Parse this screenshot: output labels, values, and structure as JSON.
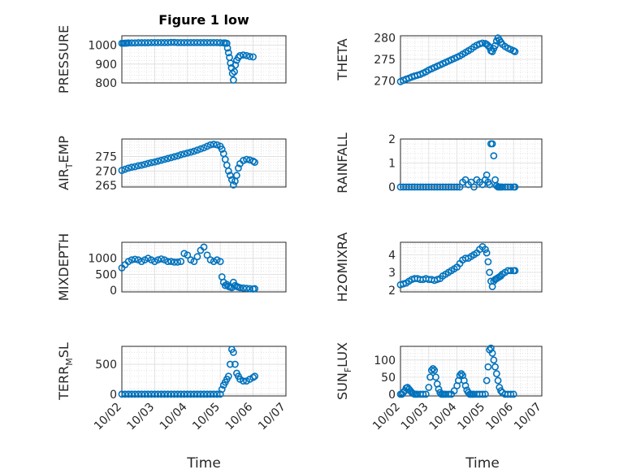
{
  "figure": {
    "title": "Figure 1 low",
    "xlabel": "Time",
    "marker_color": "#0072BD",
    "x_ticks": [
      "10/02",
      "10/03",
      "10/04",
      "10/05",
      "10/06",
      "10/07"
    ]
  },
  "chart_data": [
    {
      "type": "scatter",
      "ylabel": "PRESSURE",
      "title": "Figure 1 low",
      "xlim": [
        0,
        5
      ],
      "ylim": [
        800,
        1050
      ],
      "yticks": [
        800,
        900,
        1000
      ],
      "xtick_labels": [],
      "grid": "major+minor",
      "x": [
        0,
        0.05,
        0.1,
        0.15,
        0.2,
        0.3,
        0.4,
        0.5,
        0.6,
        0.7,
        0.8,
        0.9,
        1,
        1.1,
        1.2,
        1.3,
        1.4,
        1.5,
        1.6,
        1.7,
        1.8,
        1.9,
        2,
        2.1,
        2.2,
        2.3,
        2.4,
        2.5,
        2.6,
        2.7,
        2.8,
        2.9,
        3,
        3.1,
        3.15,
        3.2,
        3.22,
        3.25,
        3.28,
        3.31,
        3.34,
        3.37,
        3.4,
        3.43,
        3.46,
        3.5,
        3.55,
        3.6,
        3.7,
        3.8,
        3.9,
        4.0
      ],
      "y": [
        1010,
        1010,
        1011,
        1011,
        1012,
        1012,
        1012,
        1013,
        1013,
        1013,
        1013,
        1014,
        1014,
        1014,
        1014,
        1014,
        1014,
        1015,
        1015,
        1014,
        1014,
        1014,
        1014,
        1014,
        1014,
        1014,
        1014,
        1014,
        1014,
        1014,
        1014,
        1014,
        1013,
        1012,
        1012,
        1010,
        985,
        960,
        935,
        905,
        880,
        850,
        815,
        860,
        895,
        920,
        935,
        945,
        948,
        945,
        940,
        938
      ]
    },
    {
      "type": "scatter",
      "ylabel": "THETA",
      "xlim": [
        0,
        5
      ],
      "ylim": [
        269.5,
        280.5
      ],
      "yticks": [
        270,
        275,
        280
      ],
      "xtick_labels": [],
      "grid": "major+minor",
      "x": [
        0,
        0.1,
        0.2,
        0.3,
        0.4,
        0.5,
        0.6,
        0.7,
        0.8,
        0.9,
        1,
        1.1,
        1.2,
        1.3,
        1.4,
        1.5,
        1.6,
        1.7,
        1.8,
        1.9,
        2,
        2.1,
        2.2,
        2.3,
        2.4,
        2.5,
        2.6,
        2.7,
        2.8,
        2.9,
        3,
        3.05,
        3.1,
        3.15,
        3.2,
        3.25,
        3.3,
        3.35,
        3.4,
        3.45,
        3.5,
        3.55,
        3.6,
        3.7,
        3.8,
        3.9,
        4.0,
        4.05
      ],
      "y": [
        269.8,
        270.1,
        270.4,
        270.6,
        270.9,
        271.1,
        271.3,
        271.5,
        271.8,
        272.1,
        272.5,
        272.8,
        273.1,
        273.4,
        273.7,
        274.0,
        274.3,
        274.6,
        274.9,
        275.2,
        275.5,
        275.8,
        276.2,
        276.6,
        277.0,
        277.4,
        277.9,
        278.3,
        278.6,
        278.8,
        278.7,
        278.5,
        278.2,
        277.8,
        277.0,
        276.8,
        277.5,
        278.2,
        279.3,
        280.0,
        279.5,
        279.0,
        278.5,
        278.0,
        277.6,
        277.3,
        277.0,
        276.8
      ]
    },
    {
      "type": "scatter",
      "ylabel": "AIR_TEMP",
      "xlim": [
        0,
        5
      ],
      "ylim": [
        264.5,
        281
      ],
      "yticks": [
        265,
        270,
        275
      ],
      "xtick_labels": [],
      "grid": "major+minor",
      "x": [
        0,
        0.1,
        0.2,
        0.3,
        0.4,
        0.5,
        0.6,
        0.7,
        0.8,
        0.9,
        1,
        1.1,
        1.2,
        1.3,
        1.4,
        1.5,
        1.6,
        1.7,
        1.8,
        1.9,
        2,
        2.1,
        2.2,
        2.3,
        2.4,
        2.5,
        2.6,
        2.7,
        2.8,
        2.9,
        3,
        3.05,
        3.1,
        3.15,
        3.2,
        3.25,
        3.3,
        3.35,
        3.4,
        3.45,
        3.5,
        3.55,
        3.6,
        3.7,
        3.8,
        3.9,
        4.0,
        4.05
      ],
      "y": [
        270.2,
        270.6,
        271.0,
        271.3,
        271.5,
        271.8,
        272.0,
        272.3,
        272.6,
        272.9,
        273.1,
        273.4,
        273.7,
        274.0,
        274.3,
        274.6,
        274.9,
        275.2,
        275.6,
        275.9,
        276.2,
        276.5,
        276.8,
        277.2,
        277.6,
        278.0,
        278.5,
        279.0,
        279.2,
        279.0,
        278.5,
        277.5,
        276.0,
        274.0,
        272.0,
        270.0,
        268.5,
        267.0,
        265.2,
        266.5,
        268.5,
        271.0,
        272.5,
        273.6,
        274.0,
        273.8,
        273.4,
        273.0
      ]
    },
    {
      "type": "scatter",
      "ylabel": "RAINFALL",
      "xlim": [
        0,
        5
      ],
      "ylim": [
        0,
        2
      ],
      "yticks": [
        0,
        1,
        2
      ],
      "xtick_labels": [],
      "grid": "major+minor",
      "x": [
        0,
        0.1,
        0.2,
        0.3,
        0.4,
        0.5,
        0.6,
        0.7,
        0.8,
        0.9,
        1,
        1.1,
        1.2,
        1.3,
        1.4,
        1.5,
        1.6,
        1.7,
        1.8,
        1.9,
        2,
        2.1,
        2.2,
        2.3,
        2.4,
        2.5,
        2.6,
        2.7,
        2.8,
        2.9,
        3,
        3.05,
        3.1,
        3.15,
        3.2,
        3.25,
        3.3,
        3.35,
        3.4,
        3.45,
        3.5,
        3.55,
        3.6,
        3.7,
        3.8,
        3.9,
        4.0,
        4.05
      ],
      "y": [
        0,
        0,
        0,
        0,
        0,
        0,
        0,
        0,
        0,
        0,
        0,
        0,
        0,
        0,
        0,
        0,
        0,
        0,
        0,
        0,
        0,
        0,
        0.2,
        0.3,
        0.1,
        0.2,
        0,
        0.3,
        0.2,
        0.1,
        0.3,
        0.5,
        0.2,
        0.1,
        1.8,
        1.8,
        1.3,
        0.3,
        0.05,
        0,
        0,
        0,
        0,
        0,
        0,
        0,
        0,
        0
      ]
    },
    {
      "type": "scatter",
      "ylabel": "MIXDEPTH",
      "xlim": [
        0,
        5
      ],
      "ylim": [
        -50,
        1500
      ],
      "yticks": [
        0,
        500,
        1000
      ],
      "xtick_labels": [],
      "grid": "major+minor",
      "x": [
        0,
        0.1,
        0.2,
        0.3,
        0.4,
        0.5,
        0.6,
        0.7,
        0.8,
        0.9,
        1,
        1.1,
        1.2,
        1.3,
        1.4,
        1.5,
        1.6,
        1.7,
        1.8,
        1.9,
        2,
        2.1,
        2.2,
        2.3,
        2.4,
        2.5,
        2.6,
        2.7,
        2.8,
        2.9,
        3,
        3.05,
        3.1,
        3.15,
        3.2,
        3.25,
        3.3,
        3.35,
        3.4,
        3.45,
        3.5,
        3.55,
        3.6,
        3.7,
        3.8,
        3.9,
        4.0,
        4.05
      ],
      "y": [
        700,
        800,
        900,
        950,
        970,
        950,
        900,
        950,
        1000,
        950,
        900,
        950,
        980,
        950,
        900,
        900,
        880,
        880,
        900,
        1150,
        1100,
        950,
        900,
        1050,
        1250,
        1350,
        1100,
        950,
        900,
        950,
        900,
        420,
        250,
        150,
        180,
        120,
        100,
        80,
        250,
        150,
        120,
        100,
        80,
        70,
        60,
        50,
        40,
        50
      ]
    },
    {
      "type": "scatter",
      "ylabel": "H2OMIXRA",
      "xlim": [
        0,
        5
      ],
      "ylim": [
        1.9,
        4.7
      ],
      "yticks": [
        2,
        3,
        4
      ],
      "xtick_labels": [],
      "grid": "major+minor",
      "x": [
        0,
        0.1,
        0.2,
        0.3,
        0.4,
        0.5,
        0.6,
        0.7,
        0.8,
        0.9,
        1,
        1.1,
        1.2,
        1.3,
        1.4,
        1.5,
        1.6,
        1.7,
        1.8,
        1.9,
        2,
        2.1,
        2.2,
        2.3,
        2.4,
        2.5,
        2.6,
        2.7,
        2.8,
        2.9,
        3,
        3.05,
        3.1,
        3.15,
        3.2,
        3.25,
        3.3,
        3.35,
        3.4,
        3.45,
        3.5,
        3.55,
        3.6,
        3.7,
        3.8,
        3.9,
        4.0,
        4.05
      ],
      "y": [
        2.3,
        2.35,
        2.4,
        2.5,
        2.6,
        2.65,
        2.65,
        2.6,
        2.6,
        2.65,
        2.6,
        2.6,
        2.55,
        2.6,
        2.65,
        2.8,
        2.9,
        3.0,
        3.1,
        3.2,
        3.3,
        3.5,
        3.7,
        3.8,
        3.8,
        3.9,
        4.0,
        4.1,
        4.3,
        4.45,
        4.3,
        4.1,
        3.6,
        3.0,
        2.5,
        2.2,
        2.5,
        2.6,
        2.65,
        2.7,
        2.75,
        2.8,
        2.9,
        3.0,
        3.1,
        3.1,
        3.1,
        3.1
      ]
    },
    {
      "type": "scatter",
      "ylabel": "TERR_MSL",
      "xlim": [
        0,
        5
      ],
      "ylim": [
        -30,
        800
      ],
      "yticks": [
        0,
        500
      ],
      "xtick_labels": [
        "10/02",
        "10/03",
        "10/04",
        "10/05",
        "10/06",
        "10/07"
      ],
      "grid": "major+minor",
      "x": [
        0,
        0.1,
        0.2,
        0.3,
        0.4,
        0.5,
        0.6,
        0.7,
        0.8,
        0.9,
        1,
        1.1,
        1.2,
        1.3,
        1.4,
        1.5,
        1.6,
        1.7,
        1.8,
        1.9,
        2,
        2.1,
        2.2,
        2.3,
        2.4,
        2.5,
        2.6,
        2.7,
        2.8,
        2.9,
        3,
        3.05,
        3.1,
        3.15,
        3.2,
        3.25,
        3.3,
        3.35,
        3.4,
        3.45,
        3.5,
        3.55,
        3.6,
        3.7,
        3.8,
        3.9,
        4.0,
        4.05
      ],
      "y": [
        0,
        0,
        0,
        0,
        0,
        0,
        0,
        0,
        0,
        0,
        0,
        0,
        0,
        0,
        0,
        0,
        0,
        0,
        0,
        0,
        0,
        0,
        0,
        0,
        0,
        0,
        0,
        0,
        0,
        0,
        0,
        80,
        150,
        200,
        250,
        300,
        500,
        750,
        700,
        500,
        350,
        300,
        250,
        220,
        220,
        250,
        280,
        300
      ]
    },
    {
      "type": "scatter",
      "ylabel": "SUN_FLUX",
      "xlim": [
        0,
        5
      ],
      "ylim": [
        -5,
        140
      ],
      "yticks": [
        0,
        50,
        100
      ],
      "xtick_labels": [
        "10/02",
        "10/03",
        "10/04",
        "10/05",
        "10/06",
        "10/07"
      ],
      "grid": "major+minor",
      "x": [
        0,
        0.05,
        0.1,
        0.15,
        0.2,
        0.25,
        0.3,
        0.35,
        0.4,
        0.45,
        0.5,
        0.55,
        0.6,
        0.7,
        0.8,
        0.9,
        1.0,
        1.05,
        1.1,
        1.15,
        1.2,
        1.25,
        1.3,
        1.35,
        1.4,
        1.45,
        1.5,
        1.55,
        1.6,
        1.7,
        1.8,
        1.9,
        2.0,
        2.05,
        2.1,
        2.15,
        2.2,
        2.25,
        2.3,
        2.35,
        2.4,
        2.45,
        2.5,
        2.55,
        2.6,
        2.7,
        2.8,
        2.9,
        3.0,
        3.05,
        3.1,
        3.15,
        3.2,
        3.25,
        3.3,
        3.35,
        3.4,
        3.45,
        3.5,
        3.55,
        3.6,
        3.7,
        3.8,
        3.9,
        4.0
      ],
      "y": [
        0,
        0,
        5,
        10,
        18,
        20,
        15,
        10,
        5,
        2,
        0,
        0,
        0,
        0,
        0,
        0,
        20,
        50,
        70,
        75,
        70,
        50,
        30,
        15,
        5,
        0,
        0,
        0,
        0,
        0,
        0,
        10,
        25,
        40,
        55,
        60,
        55,
        40,
        25,
        12,
        5,
        0,
        0,
        0,
        0,
        0,
        0,
        0,
        0,
        40,
        80,
        130,
        135,
        120,
        100,
        80,
        60,
        40,
        20,
        10,
        5,
        0,
        0,
        0,
        0
      ]
    }
  ],
  "ylabel_parts": [
    {
      "main": "PRESSURE",
      "sub": "",
      "tail": ""
    },
    {
      "main": "THETA",
      "sub": "",
      "tail": ""
    },
    {
      "main": "AIR",
      "sub": "T",
      "tail": "EMP"
    },
    {
      "main": "RAINFALL",
      "sub": "",
      "tail": ""
    },
    {
      "main": "MIXDEPTH",
      "sub": "",
      "tail": ""
    },
    {
      "main": "H2OMIXRA",
      "sub": "",
      "tail": ""
    },
    {
      "main": "TERR",
      "sub": "M",
      "tail": "SL"
    },
    {
      "main": "SUN",
      "sub": "F",
      "tail": "LUX"
    }
  ]
}
